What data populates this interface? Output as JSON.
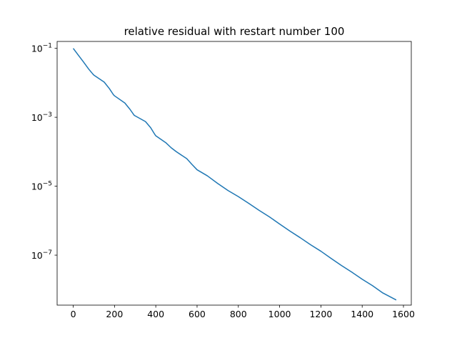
{
  "chart_data": {
    "type": "line",
    "title": "relative residual with restart number 100",
    "xlabel": "",
    "ylabel": "",
    "yscale": "log",
    "xlim": [
      -78,
      1638
    ],
    "ylim_exponents": [
      -8.45,
      -0.8
    ],
    "xticks": [
      0,
      200,
      400,
      600,
      800,
      1000,
      1200,
      1400,
      1600
    ],
    "xtick_labels": [
      "0",
      "200",
      "400",
      "600",
      "800",
      "1000",
      "1200",
      "1400",
      "1600"
    ],
    "yticks_exponent": [
      -1,
      -3,
      -5,
      -7
    ],
    "ytick_labels": [
      {
        "base": "10",
        "exp": "−1"
      },
      {
        "base": "10",
        "exp": "−3"
      },
      {
        "base": "10",
        "exp": "−5"
      },
      {
        "base": "10",
        "exp": "−7"
      }
    ],
    "grid": false,
    "series": [
      {
        "color": "#1f77b4",
        "x": [
          0,
          25,
          50,
          75,
          95,
          100,
          150,
          175,
          195,
          200,
          250,
          275,
          295,
          300,
          350,
          375,
          395,
          400,
          450,
          475,
          500,
          550,
          575,
          600,
          650,
          700,
          750,
          800,
          850,
          900,
          950,
          1000,
          1050,
          1100,
          1150,
          1200,
          1250,
          1300,
          1350,
          1400,
          1450,
          1500,
          1565
        ],
        "y": [
          0.1,
          0.063,
          0.04,
          0.025,
          0.018,
          0.0167,
          0.0105,
          0.0068,
          0.0045,
          0.0042,
          0.0026,
          0.0017,
          0.00115,
          0.0011,
          0.00075,
          0.0005,
          0.00032,
          0.00029,
          0.00018,
          0.00013,
          0.0001,
          6.3e-05,
          4.3e-05,
          3e-05,
          2e-05,
          1.2e-05,
          7.5e-06,
          5e-06,
          3.2e-06,
          2e-06,
          1.3e-06,
          8e-07,
          5e-07,
          3.2e-07,
          2e-07,
          1.3e-07,
          8e-08,
          5e-08,
          3.2e-08,
          2e-08,
          1.3e-08,
          8e-09,
          5e-09
        ]
      }
    ]
  }
}
